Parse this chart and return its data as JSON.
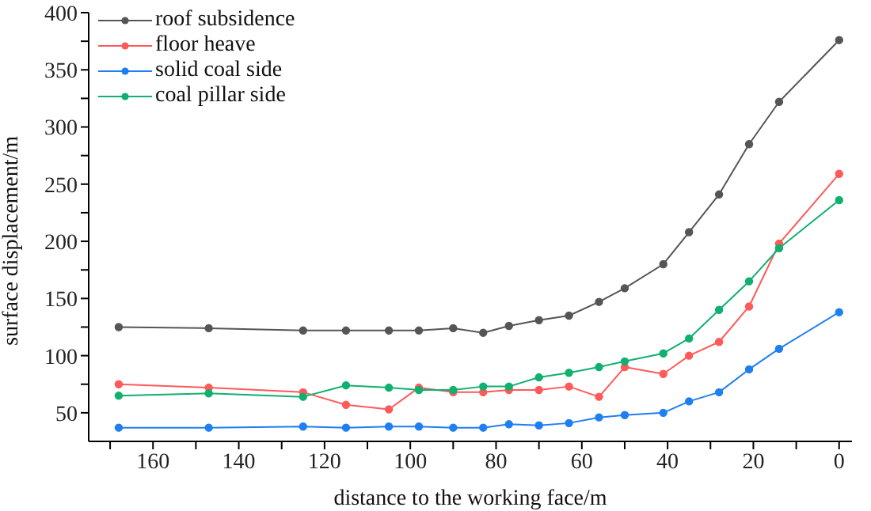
{
  "chart_data": {
    "type": "line",
    "xlabel": "distance to the working face/m",
    "ylabel": "surface displacement/m",
    "x": [
      168,
      147,
      125,
      115,
      105,
      98,
      90,
      83,
      77,
      70,
      63,
      56,
      50,
      41,
      35,
      28,
      21,
      14,
      0
    ],
    "series": [
      {
        "name": "roof subsidence",
        "color": "#555555",
        "values": [
          125,
          124,
          122,
          122,
          122,
          122,
          124,
          120,
          126,
          131,
          135,
          147,
          159,
          180,
          208,
          241,
          285,
          322,
          376
        ]
      },
      {
        "name": "floor heave",
        "color": "#ff5a5a",
        "values": [
          75,
          72,
          68,
          57,
          53,
          72,
          68,
          68,
          70,
          70,
          73,
          64,
          90,
          84,
          100,
          112,
          143,
          198,
          259
        ]
      },
      {
        "name": "solid coal side",
        "color": "#1e7ff0",
        "values": [
          37,
          37,
          38,
          37,
          38,
          38,
          37,
          37,
          40,
          39,
          41,
          46,
          48,
          50,
          60,
          68,
          88,
          106,
          138
        ]
      },
      {
        "name": "coal pillar side",
        "color": "#10b070",
        "values": [
          65,
          67,
          64,
          74,
          72,
          70,
          70,
          73,
          73,
          81,
          85,
          90,
          95,
          102,
          115,
          140,
          165,
          194,
          236
        ]
      }
    ],
    "xlim": [
      175,
      -3
    ],
    "xticks": [
      {
        "value": 170,
        "label": null
      },
      160,
      {
        "value": 150,
        "label": null
      },
      140,
      {
        "value": 130,
        "label": null
      },
      120,
      {
        "value": 110,
        "label": null
      },
      100,
      {
        "value": 90,
        "label": null
      },
      80,
      {
        "value": 70,
        "label": null
      },
      60,
      {
        "value": 50,
        "label": null
      },
      40,
      {
        "value": 30,
        "label": null
      },
      20,
      {
        "value": 10,
        "label": null
      },
      0
    ],
    "ylim": [
      25,
      400
    ],
    "yticks": [
      50,
      {
        "value": 75,
        "label": null
      },
      100,
      {
        "value": 125,
        "label": null
      },
      150,
      {
        "value": 175,
        "label": null
      },
      200,
      {
        "value": 225,
        "label": null
      },
      250,
      {
        "value": 275,
        "label": null
      },
      300,
      {
        "value": 325,
        "label": null
      },
      350,
      {
        "value": 375,
        "label": null
      },
      400
    ],
    "grid": false,
    "legend": "top left",
    "marker": "circle",
    "line_style": "solid"
  }
}
